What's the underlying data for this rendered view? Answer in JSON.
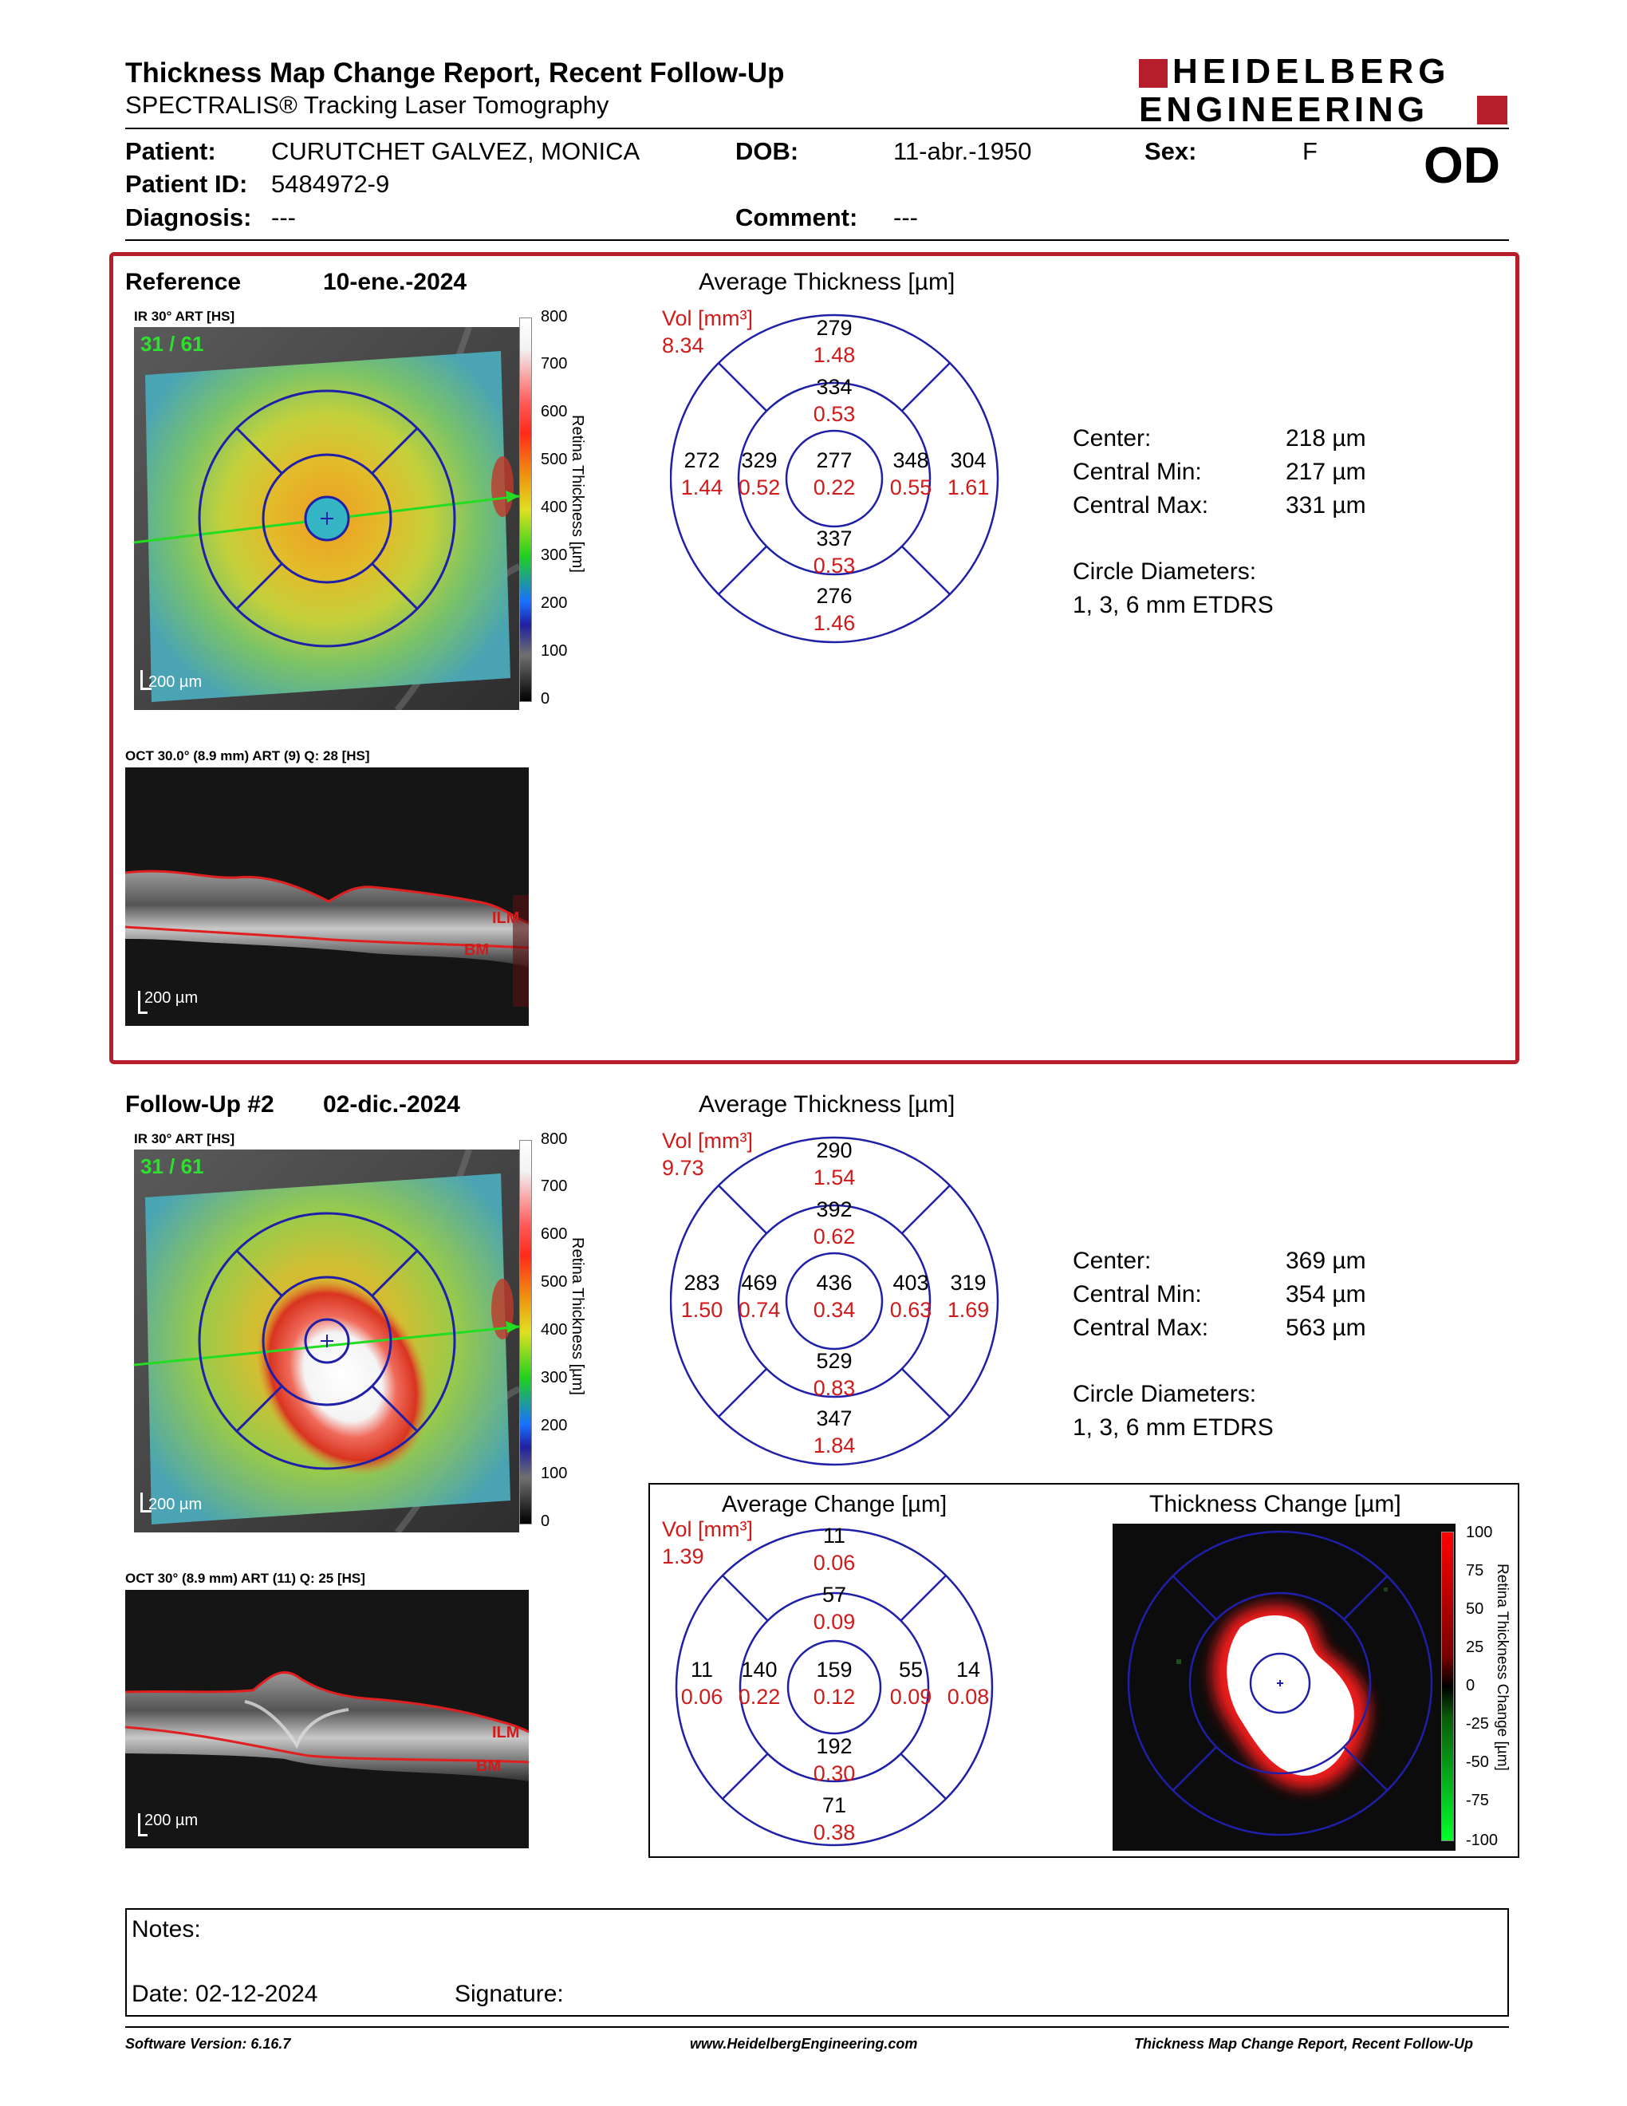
{
  "header": {
    "title": "Thickness Map Change Report, Recent Follow-Up",
    "subtitle": "SPECTRALIS® Tracking Laser Tomography",
    "logo_line1": "HEIDELBERG",
    "logo_line2": "ENGINEERING",
    "eye": "OD"
  },
  "patient": {
    "patient_label": "Patient:",
    "patient_value": "CURUTCHET GALVEZ, MONICA",
    "dob_label": "DOB:",
    "dob_value": "11-abr.-1950",
    "sex_label": "Sex:",
    "sex_value": "F",
    "id_label": "Patient ID:",
    "id_value": "5484972-9",
    "diagnosis_label": "Diagnosis:",
    "diagnosis_value": "---",
    "comment_label": "Comment:",
    "comment_value": "---"
  },
  "reference": {
    "label": "Reference",
    "date": "10-ene.-2024",
    "ir_caption": "IR 30° ART [HS]",
    "scan_counter": "31 / 61",
    "scale_bar": "200 µm",
    "oct_caption": "OCT 30.0° (8.9 mm) ART (9) Q: 28 [HS]",
    "oct_scale": "200 µm",
    "ilm": "ILM",
    "bm": "BM",
    "chart_title": "Average Thickness [µm]",
    "vol_label": "Vol [mm³]",
    "vol_total": "8.34",
    "sectors": {
      "outer_top": {
        "t": "279",
        "v": "1.48"
      },
      "inner_top": {
        "t": "334",
        "v": "0.53"
      },
      "outer_left": {
        "t": "272",
        "v": "1.44"
      },
      "inner_left": {
        "t": "329",
        "v": "0.52"
      },
      "center": {
        "t": "277",
        "v": "0.22"
      },
      "inner_right": {
        "t": "348",
        "v": "0.55"
      },
      "outer_right": {
        "t": "304",
        "v": "1.61"
      },
      "inner_bottom": {
        "t": "337",
        "v": "0.53"
      },
      "outer_bottom": {
        "t": "276",
        "v": "1.46"
      }
    },
    "stats": {
      "center_label": "Center:",
      "center_value": "218 µm",
      "min_label": "Central Min:",
      "min_value": "217 µm",
      "max_label": "Central Max:",
      "max_value": "331 µm",
      "diam_label": "Circle Diameters:",
      "diam_value": "1, 3, 6 mm ETDRS"
    }
  },
  "followup": {
    "label": "Follow-Up #2",
    "date": "02-dic.-2024",
    "ir_caption": "IR 30° ART [HS]",
    "scan_counter": "31 / 61",
    "scale_bar": "200 µm",
    "oct_caption": "OCT 30° (8.9 mm) ART (11) Q: 25 [HS]",
    "oct_scale": "200 µm",
    "ilm": "ILM",
    "bm": "BM",
    "chart_title": "Average Thickness [µm]",
    "vol_label": "Vol [mm³]",
    "vol_total": "9.73",
    "sectors": {
      "outer_top": {
        "t": "290",
        "v": "1.54"
      },
      "inner_top": {
        "t": "392",
        "v": "0.62"
      },
      "outer_left": {
        "t": "283",
        "v": "1.50"
      },
      "inner_left": {
        "t": "469",
        "v": "0.74"
      },
      "center": {
        "t": "436",
        "v": "0.34"
      },
      "inner_right": {
        "t": "403",
        "v": "0.63"
      },
      "outer_right": {
        "t": "319",
        "v": "1.69"
      },
      "inner_bottom": {
        "t": "529",
        "v": "0.83"
      },
      "outer_bottom": {
        "t": "347",
        "v": "1.84"
      }
    },
    "stats": {
      "center_label": "Center:",
      "center_value": "369 µm",
      "min_label": "Central Min:",
      "min_value": "354 µm",
      "max_label": "Central Max:",
      "max_value": "563 µm",
      "diam_label": "Circle Diameters:",
      "diam_value": "1, 3, 6 mm ETDRS"
    }
  },
  "change": {
    "chart_title": "Average Change [µm]",
    "vol_label": "Vol [mm³]",
    "vol_total": "1.39",
    "sectors": {
      "outer_top": {
        "t": "11",
        "v": "0.06"
      },
      "inner_top": {
        "t": "57",
        "v": "0.09"
      },
      "outer_left": {
        "t": "11",
        "v": "0.06"
      },
      "inner_left": {
        "t": "140",
        "v": "0.22"
      },
      "center": {
        "t": "159",
        "v": "0.12"
      },
      "inner_right": {
        "t": "55",
        "v": "0.09"
      },
      "outer_right": {
        "t": "14",
        "v": "0.08"
      },
      "inner_bottom": {
        "t": "192",
        "v": "0.30"
      },
      "outer_bottom": {
        "t": "71",
        "v": "0.38"
      }
    },
    "map_title": "Thickness Change [µm]",
    "scale_label": "Retina Thickness Change [µm]",
    "scale_ticks": [
      "100",
      "75",
      "50",
      "25",
      "0",
      "-25",
      "-50",
      "-75",
      "-100"
    ]
  },
  "thickness_scale": {
    "label": "Retina Thickness [µm]",
    "ticks": [
      "800",
      "700",
      "600",
      "500",
      "400",
      "300",
      "200",
      "100",
      "0"
    ]
  },
  "notes": {
    "notes_label": "Notes:",
    "date_label": "Date: 02-12-2024",
    "signature_label": "Signature:"
  },
  "footer": {
    "software": "Software Version: 6.16.7",
    "website": "www.HeidelbergEngineering.com",
    "report": "Thickness Map Change Report, Recent Follow-Up"
  },
  "colors": {
    "brand_red": "#b51e2a",
    "sector_blue": "#1f1fa8",
    "volume_red": "#d11a1a"
  }
}
